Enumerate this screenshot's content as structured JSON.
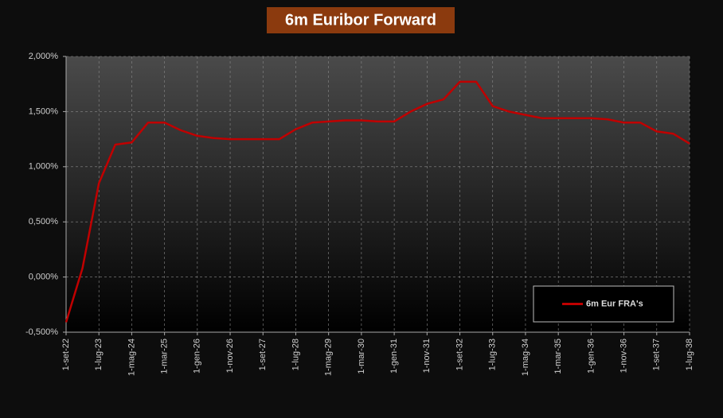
{
  "chart_data": {
    "type": "line",
    "title": "6m Euribor Forward",
    "categories": [
      "1-set-22",
      null,
      "1-lug-23",
      null,
      "1-mag-24",
      null,
      "1-mar-25",
      null,
      "1-gen-26",
      null,
      "1-nov-26",
      null,
      "1-set-27",
      null,
      "1-lug-28",
      null,
      "1-mag-29",
      null,
      "1-mar-30",
      null,
      "1-gen-31",
      null,
      "1-nov-31",
      null,
      "1-set-32",
      null,
      "1-lug-33",
      null,
      "1-mag-34",
      null,
      "1-mar-35",
      null,
      "1-gen-36",
      null,
      "1-nov-36",
      null,
      "1-set-37",
      null,
      "1-lug-38"
    ],
    "series": [
      {
        "name": "6m Eur FRA's",
        "color": "#c00000",
        "values": [
          -0.41,
          0.08,
          0.85,
          1.2,
          1.22,
          1.4,
          1.4,
          1.33,
          1.28,
          1.26,
          1.25,
          1.25,
          1.25,
          1.25,
          1.34,
          1.4,
          1.41,
          1.42,
          1.42,
          1.41,
          1.41,
          1.5,
          1.57,
          1.61,
          1.77,
          1.77,
          1.55,
          1.5,
          1.47,
          1.44,
          1.44,
          1.44,
          1.44,
          1.43,
          1.4,
          1.4,
          1.32,
          1.3,
          1.21
        ]
      }
    ],
    "ylim": [
      -0.5,
      2
    ],
    "yticks": [
      {
        "value": -0.5,
        "label": "-0,500%"
      },
      {
        "value": 0,
        "label": "0,000%"
      },
      {
        "value": 0.5,
        "label": "0,500%"
      },
      {
        "value": 1,
        "label": "1,000%"
      },
      {
        "value": 1.5,
        "label": "1,500%"
      },
      {
        "value": 2,
        "label": "2,000%"
      }
    ],
    "grid": true,
    "legend": "bottom-right"
  }
}
